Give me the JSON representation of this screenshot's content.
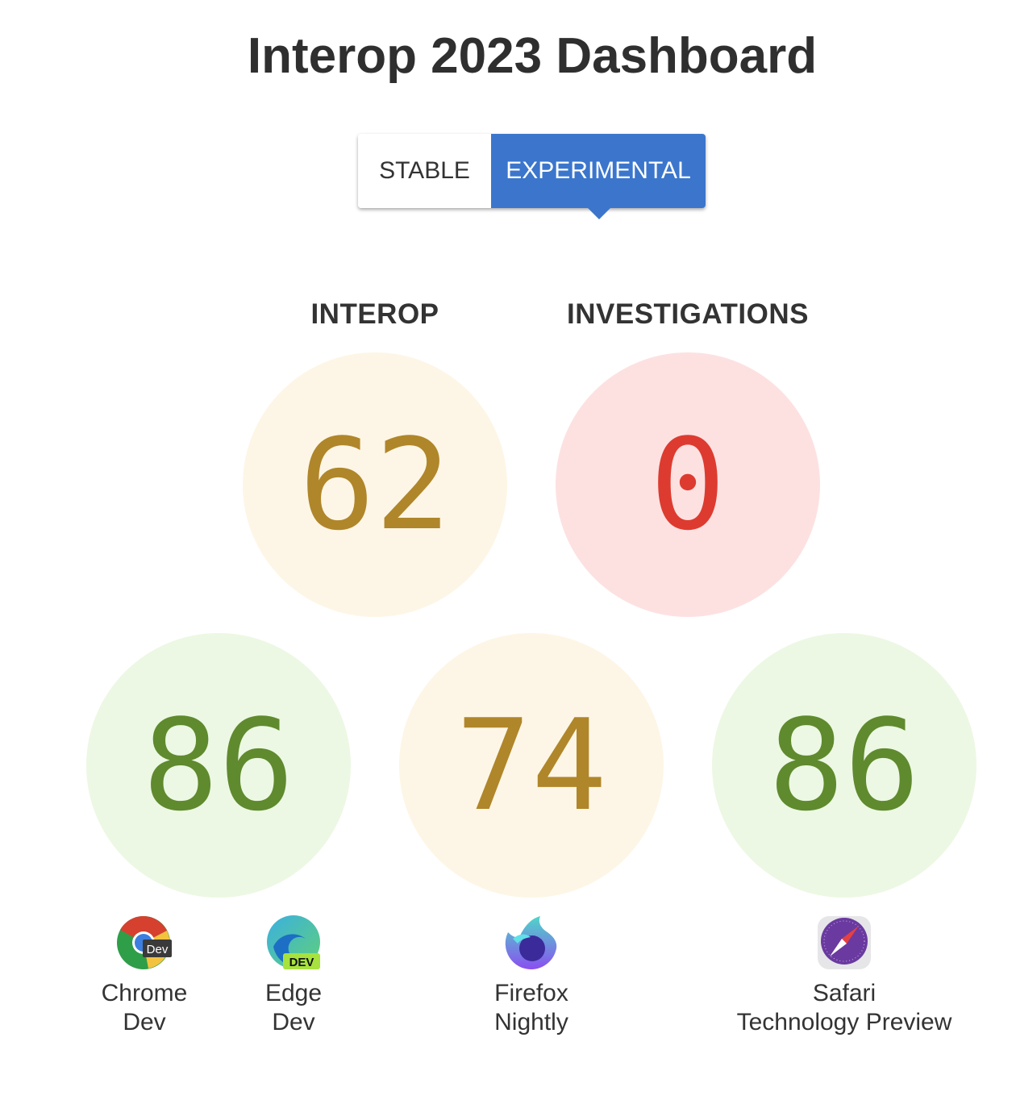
{
  "title": "Interop 2023 Dashboard",
  "toggle": {
    "stable_label": "STABLE",
    "experimental_label": "EXPERIMENTAL",
    "selected": "EXPERIMENTAL"
  },
  "summary": [
    {
      "label": "INTEROP",
      "score": "62",
      "color": "#b0862a"
    },
    {
      "label": "INVESTIGATIONS",
      "score": "0",
      "color": "#dd3b30"
    }
  ],
  "browser_scores": [
    "86",
    "74",
    "86"
  ],
  "browsers": [
    {
      "line1": "Chrome",
      "line2": "Dev",
      "icon": "chrome-dev-icon"
    },
    {
      "line1": "Edge",
      "line2": "Dev",
      "icon": "edge-dev-icon",
      "badge": "DEV"
    },
    {
      "line1": "Firefox",
      "line2": "Nightly",
      "icon": "firefox-nightly-icon"
    },
    {
      "line1": "Safari",
      "line2": "Technology Preview",
      "icon": "safari-technology-preview-icon"
    }
  ],
  "chrome_badge": "Dev"
}
